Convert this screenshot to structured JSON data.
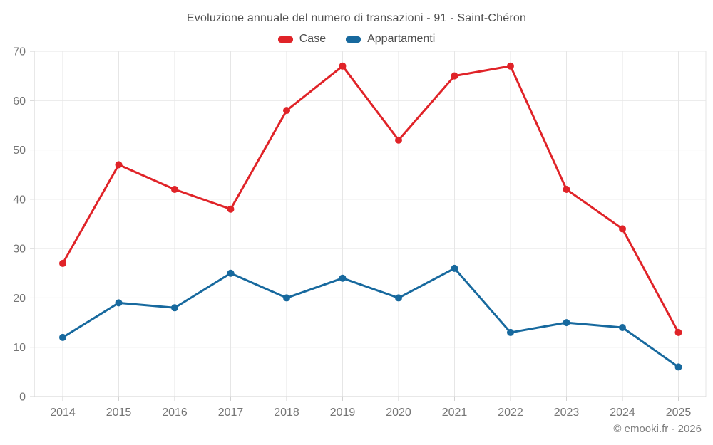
{
  "title": "Evoluzione annuale del numero di transazioni - 91 - Saint-Chéron",
  "footer": "© emooki.fr - 2026",
  "colors": {
    "case_red": "#e02328",
    "appartamenti_blue": "#17699e",
    "grid": "#e6e6e6",
    "axis": "#d2d2d2",
    "tick_label": "#757575",
    "title_text": "#4e4e4e",
    "background": "#ffffff"
  },
  "chart_data": {
    "type": "line",
    "title": "Evoluzione annuale del numero di transazioni - 91 - Saint-Chéron",
    "categories": [
      "2014",
      "2015",
      "2016",
      "2017",
      "2018",
      "2019",
      "2020",
      "2021",
      "2022",
      "2023",
      "2024",
      "2025"
    ],
    "series": [
      {
        "name": "Case",
        "color": "#e02328",
        "values": [
          27,
          47,
          42,
          38,
          58,
          67,
          52,
          65,
          67,
          42,
          34,
          13
        ]
      },
      {
        "name": "Appartamenti",
        "color": "#17699e",
        "values": [
          12,
          19,
          18,
          25,
          20,
          24,
          20,
          26,
          13,
          15,
          14,
          6
        ]
      }
    ],
    "xlabel": "",
    "ylabel": "",
    "ylim": [
      0,
      70
    ],
    "yticks": [
      0,
      10,
      20,
      30,
      40,
      50,
      60,
      70
    ],
    "grid": true,
    "legend_position": "top"
  }
}
